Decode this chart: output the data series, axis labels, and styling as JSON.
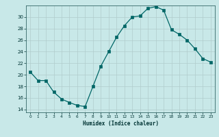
{
  "x": [
    0,
    1,
    2,
    3,
    4,
    5,
    6,
    7,
    8,
    9,
    10,
    11,
    12,
    13,
    14,
    15,
    16,
    17,
    18,
    19,
    20,
    21,
    22,
    23
  ],
  "y": [
    20.5,
    19.0,
    19.0,
    17.0,
    15.8,
    15.2,
    14.7,
    14.5,
    18.0,
    21.5,
    24.0,
    26.5,
    28.5,
    30.0,
    30.2,
    31.5,
    31.8,
    31.2,
    27.8,
    27.0,
    26.0,
    24.5,
    22.8,
    22.2
  ],
  "xlabel": "Humidex (Indice chaleur)",
  "bg_color": "#c8e8e8",
  "grid_color_major": "#b0cccc",
  "grid_color_minor": "#b0cccc",
  "line_color": "#006666",
  "marker_color": "#006666",
  "ylim": [
    13.5,
    32.0
  ],
  "xlim": [
    -0.5,
    23.5
  ],
  "yticks": [
    14,
    16,
    18,
    20,
    22,
    24,
    26,
    28,
    30
  ],
  "xtick_labels": [
    "0",
    "1",
    "2",
    "3",
    "4",
    "5",
    "6",
    "7",
    "8",
    "9",
    "10",
    "11",
    "12",
    "13",
    "14",
    "15",
    "16",
    "17",
    "18",
    "19",
    "20",
    "21",
    "22",
    "23"
  ]
}
